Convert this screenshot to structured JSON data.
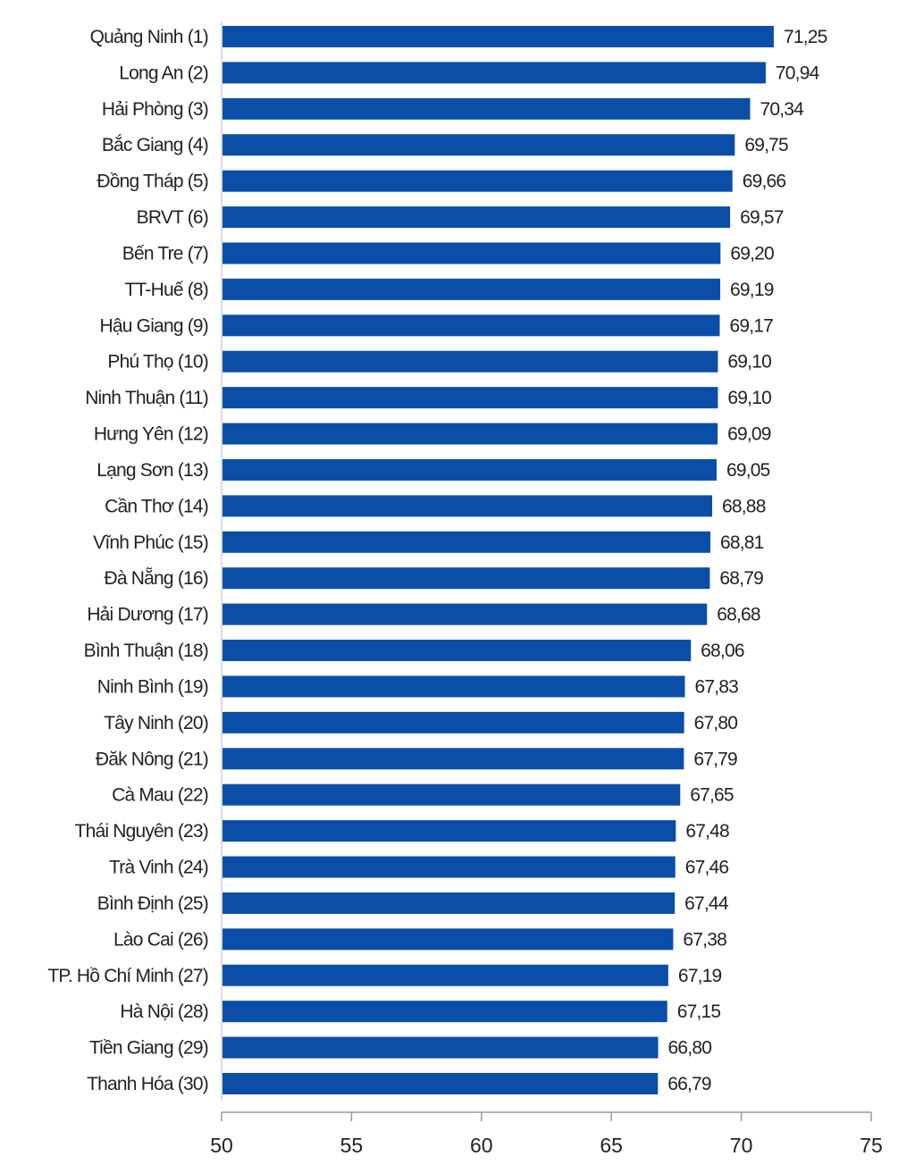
{
  "chart_data": {
    "type": "bar",
    "orientation": "horizontal",
    "bar_color": "#0b4ea8",
    "xlim": [
      50,
      75
    ],
    "xticks": [
      50,
      55,
      60,
      65,
      70,
      75
    ],
    "grid": false,
    "categories": [
      "Quảng Ninh (1)",
      "Long An (2)",
      "Hải Phòng (3)",
      "Bắc Giang (4)",
      "Đồng Tháp (5)",
      "BRVT (6)",
      "Bến Tre (7)",
      "TT-Huế (8)",
      "Hậu Giang (9)",
      "Phú Thọ (10)",
      "Ninh Thuận (11)",
      "Hưng Yên (12)",
      "Lạng Sơn (13)",
      "Cần Thơ (14)",
      "Vĩnh Phúc (15)",
      "Đà Nẵng (16)",
      "Hải Dương (17)",
      "Bình Thuận (18)",
      "Ninh Bình (19)",
      "Tây Ninh (20)",
      "Đăk Nông (21)",
      "Cà Mau (22)",
      "Thái Nguyên (23)",
      "Trà Vinh (24)",
      "Bình Định (25)",
      "Lào Cai (26)",
      "TP. Hồ Chí Minh (27)",
      "Hà Nội (28)",
      "Tiền Giang (29)",
      "Thanh Hóa (30)"
    ],
    "values": [
      71.25,
      70.94,
      70.34,
      69.75,
      69.66,
      69.57,
      69.2,
      69.19,
      69.17,
      69.1,
      69.1,
      69.09,
      69.05,
      68.88,
      68.81,
      68.79,
      68.68,
      68.06,
      67.83,
      67.8,
      67.79,
      67.65,
      67.48,
      67.46,
      67.44,
      67.38,
      67.19,
      67.15,
      66.8,
      66.79
    ],
    "value_labels": [
      "71,25",
      "70,94",
      "70,34",
      "69,75",
      "69,66",
      "69,57",
      "69,20",
      "69,19",
      "69,17",
      "69,10",
      "69,10",
      "69,09",
      "69,05",
      "68,88",
      "68,81",
      "68,79",
      "68,68",
      "68,06",
      "67,83",
      "67,80",
      "67,79",
      "67,65",
      "67,48",
      "67,46",
      "67,44",
      "67,38",
      "67,19",
      "67,15",
      "66,80",
      "66,79"
    ]
  }
}
